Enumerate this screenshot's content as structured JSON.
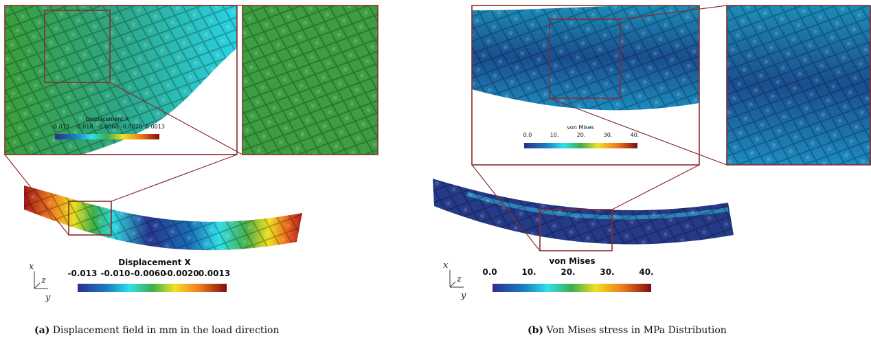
{
  "panels": [
    {
      "label": "(a)",
      "caption": "Displacement field in mm in the load direction",
      "colorbar": {
        "title": "Displacement X",
        "ticks": [
          "-0.013",
          "-0.010",
          "-0.0060",
          "-0.0020",
          "0.0013"
        ]
      },
      "inset_colorbar": {
        "title": "Displacement X",
        "ticks": [
          "-0.013",
          "-0.010",
          "-0.0060",
          "-0.0020",
          "0.0013"
        ]
      },
      "axes": [
        "x",
        "z",
        "y"
      ]
    },
    {
      "label": "(b)",
      "caption": "Von Mises stress in MPa Distribution",
      "colorbar": {
        "title": "von Mises",
        "ticks": [
          "0.0",
          "10.",
          "20.",
          "30.",
          "40."
        ]
      },
      "inset_colorbar": {
        "title": "von Mises",
        "ticks": [
          "0.0",
          "10.",
          "20.",
          "30.",
          "40."
        ]
      },
      "axes": [
        "x",
        "z",
        "y"
      ]
    }
  ]
}
